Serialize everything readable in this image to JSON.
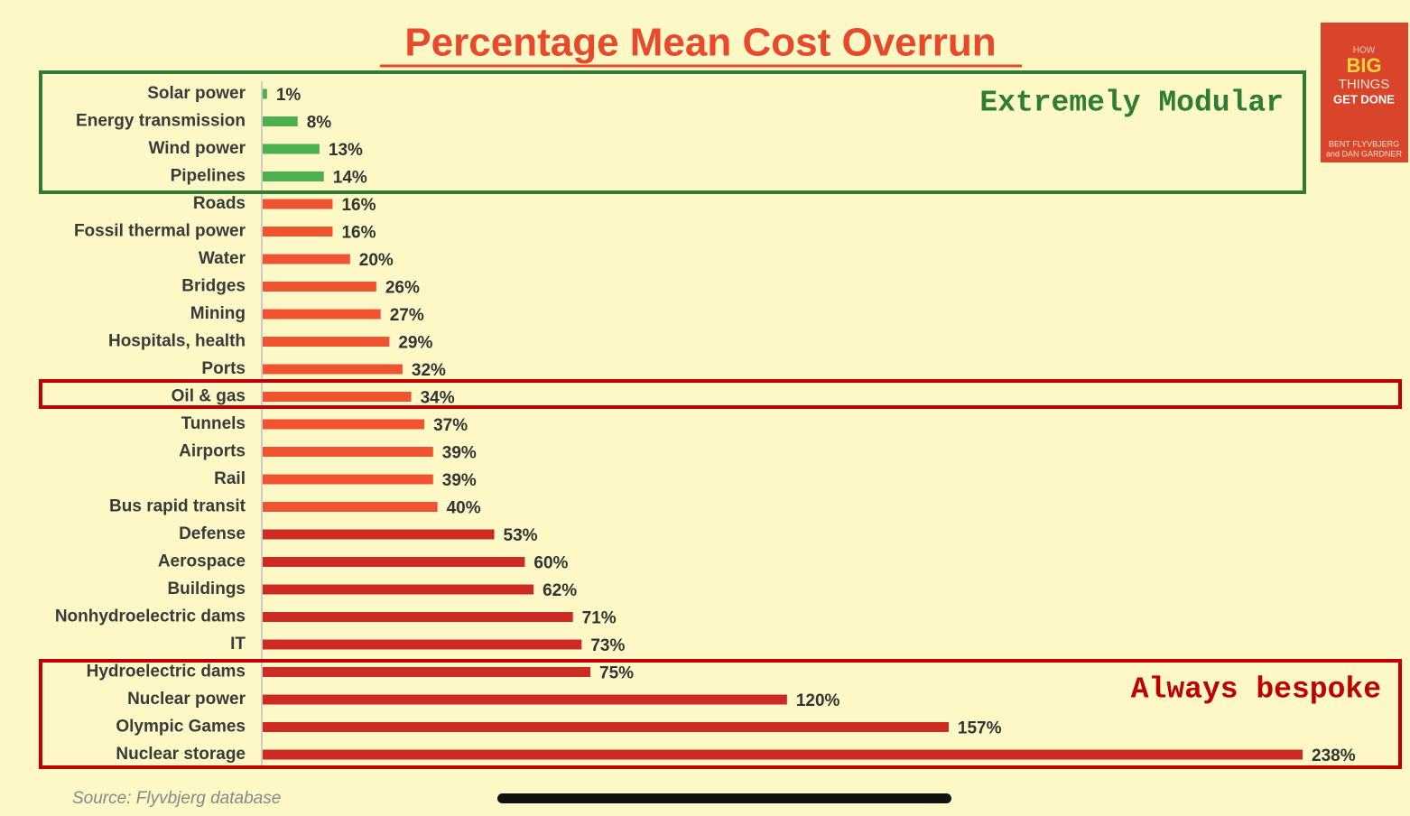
{
  "chart_data": {
    "type": "bar",
    "orientation": "horizontal",
    "title": "Percentage Mean Cost Overrun",
    "categories": [
      "Solar power",
      "Energy transmission",
      "Wind power",
      "Pipelines",
      "Roads",
      "Fossil thermal power",
      "Water",
      "Bridges",
      "Mining",
      "Hospitals, health",
      "Ports",
      "Oil & gas",
      "Tunnels",
      "Airports",
      "Rail",
      "Bus rapid transit",
      "Defense",
      "Aerospace",
      "Buildings",
      "Nonhydroelectric dams",
      "IT",
      "Hydroelectric dams",
      "Nuclear power",
      "Olympic Games",
      "Nuclear storage"
    ],
    "values": [
      1,
      8,
      13,
      14,
      16,
      16,
      20,
      26,
      27,
      29,
      32,
      34,
      37,
      39,
      39,
      40,
      53,
      60,
      62,
      71,
      73,
      75,
      120,
      157,
      238
    ],
    "value_labels": [
      "1%",
      "8%",
      "13%",
      "14%",
      "16%",
      "16%",
      "20%",
      "26%",
      "27%",
      "29%",
      "32%",
      "34%",
      "37%",
      "39%",
      "39%",
      "40%",
      "53%",
      "60%",
      "62%",
      "71%",
      "73%",
      "75%",
      "120%",
      "157%",
      "238%"
    ],
    "colors": [
      "#4caf50",
      "#4caf50",
      "#4caf50",
      "#4caf50",
      "#ef5330",
      "#ef5330",
      "#ef5330",
      "#ef5330",
      "#ef5330",
      "#ef5330",
      "#ef5330",
      "#ef5330",
      "#ef5330",
      "#ef5330",
      "#ef5330",
      "#ef5330",
      "#cc2a22",
      "#cc2a22",
      "#cc2a22",
      "#cc2a22",
      "#cc2a22",
      "#cc2a22",
      "#cc2a22",
      "#cc2a22",
      "#cc2a22"
    ],
    "xlim": [
      0,
      238
    ],
    "annotations": [
      "Extremely Modular",
      "Always bespoke"
    ],
    "source": "Source: Flyvbjerg database",
    "book": [
      "HOW",
      "BIG",
      "THINGS",
      "GET DONE",
      "BENT FLYVBJERG",
      "and DAN GARDNER"
    ]
  }
}
